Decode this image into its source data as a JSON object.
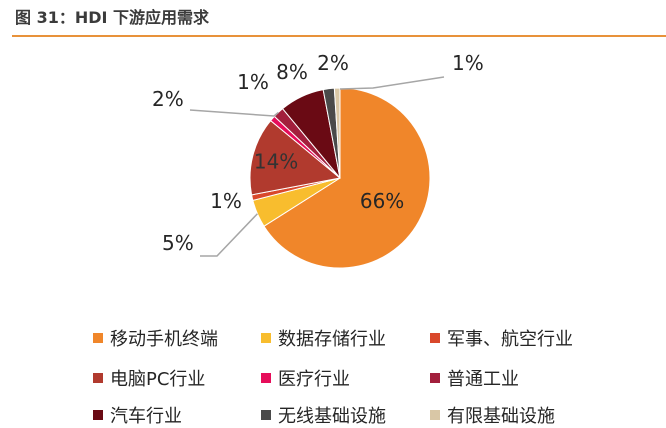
{
  "header": {
    "title": "图 31：HDI 下游应用需求"
  },
  "chart_data": {
    "type": "pie",
    "title": "",
    "slices": [
      {
        "name": "移动手机终端",
        "value": 66,
        "label": "66%",
        "color": "#f0862a"
      },
      {
        "name": "数据存储行业",
        "value": 5,
        "label": "5%",
        "color": "#f8bd2e"
      },
      {
        "name": "军事、航空行业",
        "value": 1,
        "label": "1%",
        "color": "#d9482b"
      },
      {
        "name": "电脑PC行业",
        "value": 14,
        "label": "14%",
        "color": "#b13a2e"
      },
      {
        "name": "医疗行业",
        "value": 1,
        "label": "1%",
        "color": "#e60d5a"
      },
      {
        "name": "普通工业",
        "value": 2,
        "label": "2%",
        "color": "#a21f3c"
      },
      {
        "name": "汽车行业",
        "value": 8,
        "label": "8%",
        "color": "#6a0a14"
      },
      {
        "name": "无线基础设施",
        "value": 2,
        "label": "2%",
        "color": "#4a4a4a"
      },
      {
        "name": "有限基础设施",
        "value": 1,
        "label": "1%",
        "color": "#d9c7a6"
      }
    ],
    "legend_position": "bottom"
  }
}
